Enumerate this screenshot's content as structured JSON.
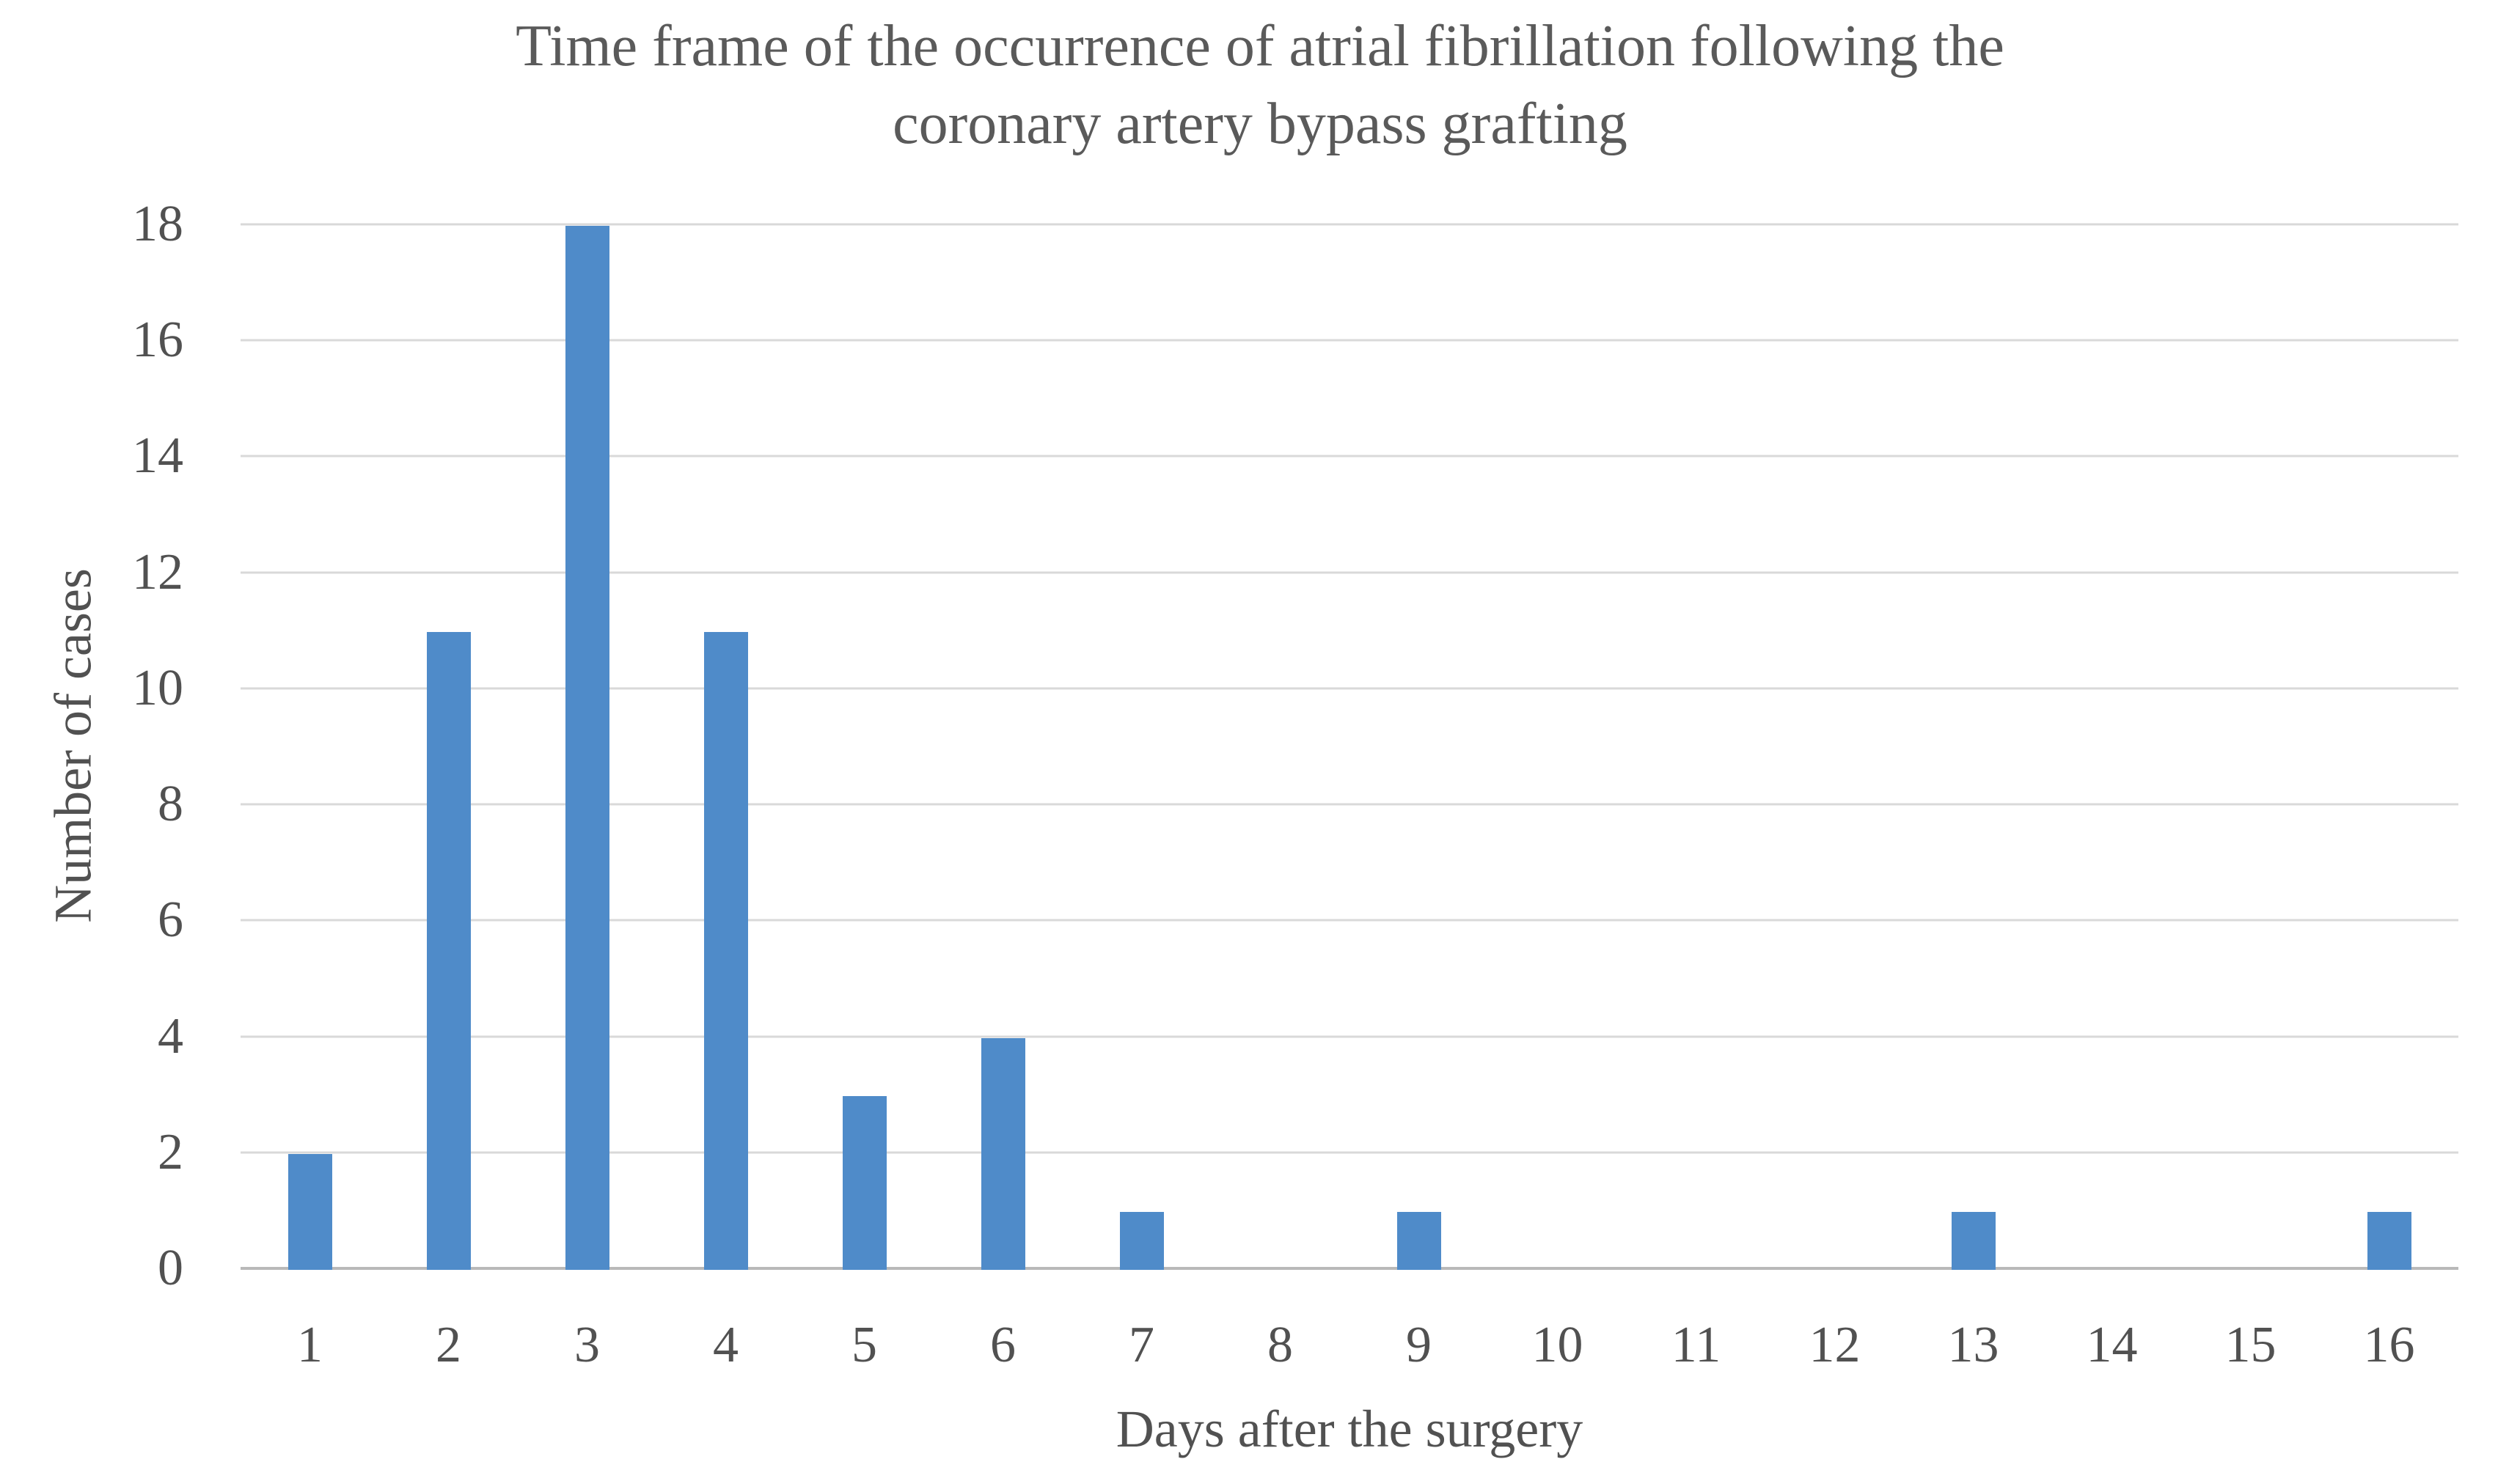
{
  "chart_data": {
    "type": "bar",
    "title": "Time frame of the occurrence of atrial fibrillation following the coronary artery bypass grafting",
    "title_lines": [
      "Time frame of the occurrence of atrial fibrillation following the",
      "coronary artery bypass grafting"
    ],
    "xlabel": "Days after the surgery",
    "ylabel": "Number of cases",
    "categories": [
      "1",
      "2",
      "3",
      "4",
      "5",
      "6",
      "7",
      "8",
      "9",
      "10",
      "11",
      "12",
      "13",
      "14",
      "15",
      "16"
    ],
    "values": [
      2,
      11,
      18,
      11,
      3,
      4,
      1,
      0,
      1,
      0,
      0,
      0,
      1,
      0,
      0,
      1
    ],
    "ylim": [
      0,
      18
    ],
    "ytick_step": 2,
    "yticks": [
      18,
      16,
      14,
      12,
      10,
      8,
      6,
      4,
      2,
      0
    ],
    "grid": "horizontal-only",
    "legend": "none"
  },
  "colors": {
    "bar": "#4f8bc9",
    "gridline": "#d9d9d9",
    "axis_line": "#b9b9b9",
    "text": "#515151",
    "title_text": "#5a5a5a",
    "background": "#ffffff"
  }
}
